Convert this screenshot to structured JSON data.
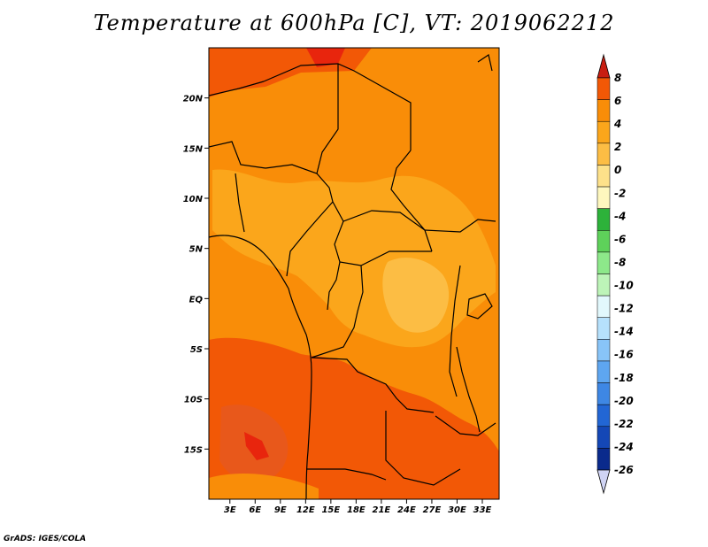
{
  "title": "Temperature at 600hPa [C], VT: 2019062212",
  "credit": "GrADS: IGES/COLA",
  "map": {
    "lon_labels": [
      "3E",
      "6E",
      "9E",
      "12E",
      "15E",
      "18E",
      "21E",
      "24E",
      "27E",
      "30E",
      "33E"
    ],
    "lat_labels": [
      "20N",
      "15N",
      "10N",
      "5N",
      "EQ",
      "5S",
      "10S",
      "15S"
    ],
    "lon_values": [
      3,
      6,
      9,
      12,
      15,
      18,
      21,
      24,
      27,
      30,
      33
    ],
    "lat_values": [
      20,
      15,
      10,
      5,
      0,
      -5,
      -10,
      -15
    ],
    "lon_range": [
      0.5,
      35
    ],
    "lat_range": [
      -20,
      25
    ]
  },
  "colorbar": {
    "labels": [
      "8",
      "6",
      "4",
      "2",
      "0",
      "-2",
      "-4",
      "-6",
      "-8",
      "-10",
      "-12",
      "-14",
      "-16",
      "-18",
      "-20",
      "-22",
      "-24",
      "-26"
    ],
    "colors": [
      "#e8250d",
      "#f25806",
      "#f98d08",
      "#fba61b",
      "#fcbd44",
      "#fde18a",
      "#fef7be",
      "#2db23a",
      "#5ed15a",
      "#8de88a",
      "#bdf4b8",
      "#e2f8fc",
      "#b6e1fc",
      "#88c4f8",
      "#5ea6f0",
      "#3e87e4",
      "#2266d4",
      "#1447b6",
      "#0a2a8c",
      "#080a5c"
    ],
    "top_arrow_color": "#c81e12",
    "bottom_arrow_color": "#d0d4f4"
  }
}
